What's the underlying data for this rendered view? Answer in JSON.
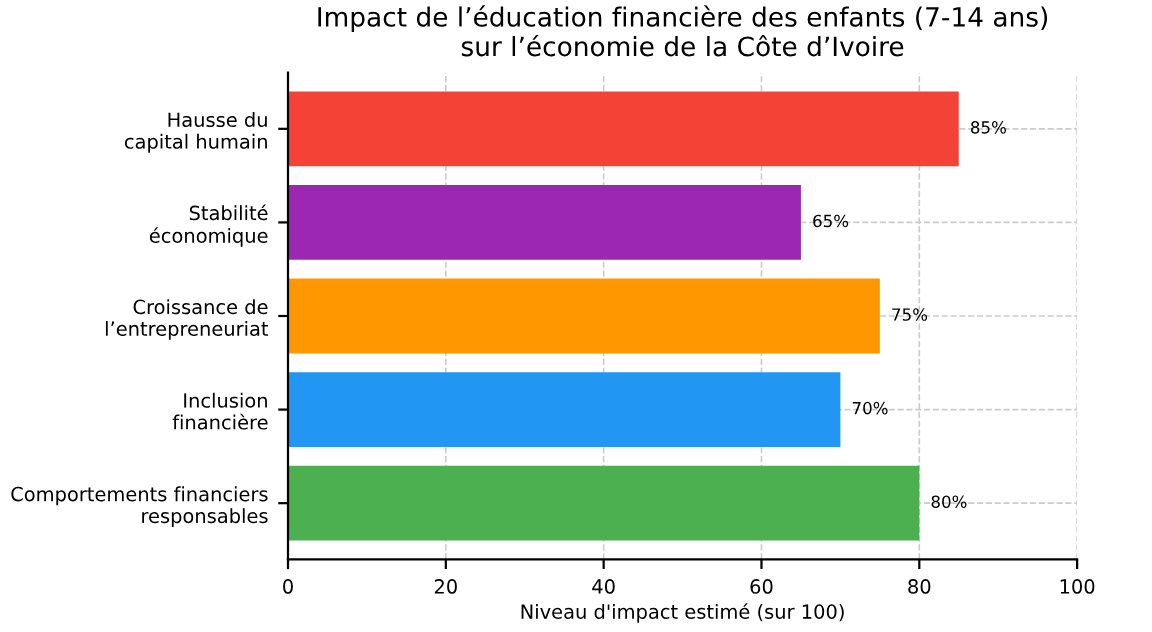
{
  "chart_data": {
    "type": "bar",
    "orientation": "horizontal",
    "title": "Impact de l’éducation financière des enfants (7-14 ans)\nsur l’économie de la Côte d’Ivoire",
    "xlabel": "Niveau d'impact estimé (sur 100)",
    "categories": [
      "Hausse du\ncapital humain",
      "Stabilité\néconomique",
      "Croissance de\nl’entrepreneuriat",
      "Inclusion\nfinancière",
      "Comportements financiers\nresponsables"
    ],
    "values": [
      85,
      65,
      75,
      70,
      80
    ],
    "colors": [
      "#f44336",
      "#9c27b0",
      "#ff9800",
      "#2196f3",
      "#4caf50"
    ],
    "value_labels": [
      "85%",
      "65%",
      "75%",
      "70%",
      "80%"
    ],
    "xlim": [
      0,
      100
    ],
    "xticks": [
      0,
      20,
      40,
      60,
      80,
      100
    ],
    "grid": true,
    "line_style": "dashed"
  }
}
